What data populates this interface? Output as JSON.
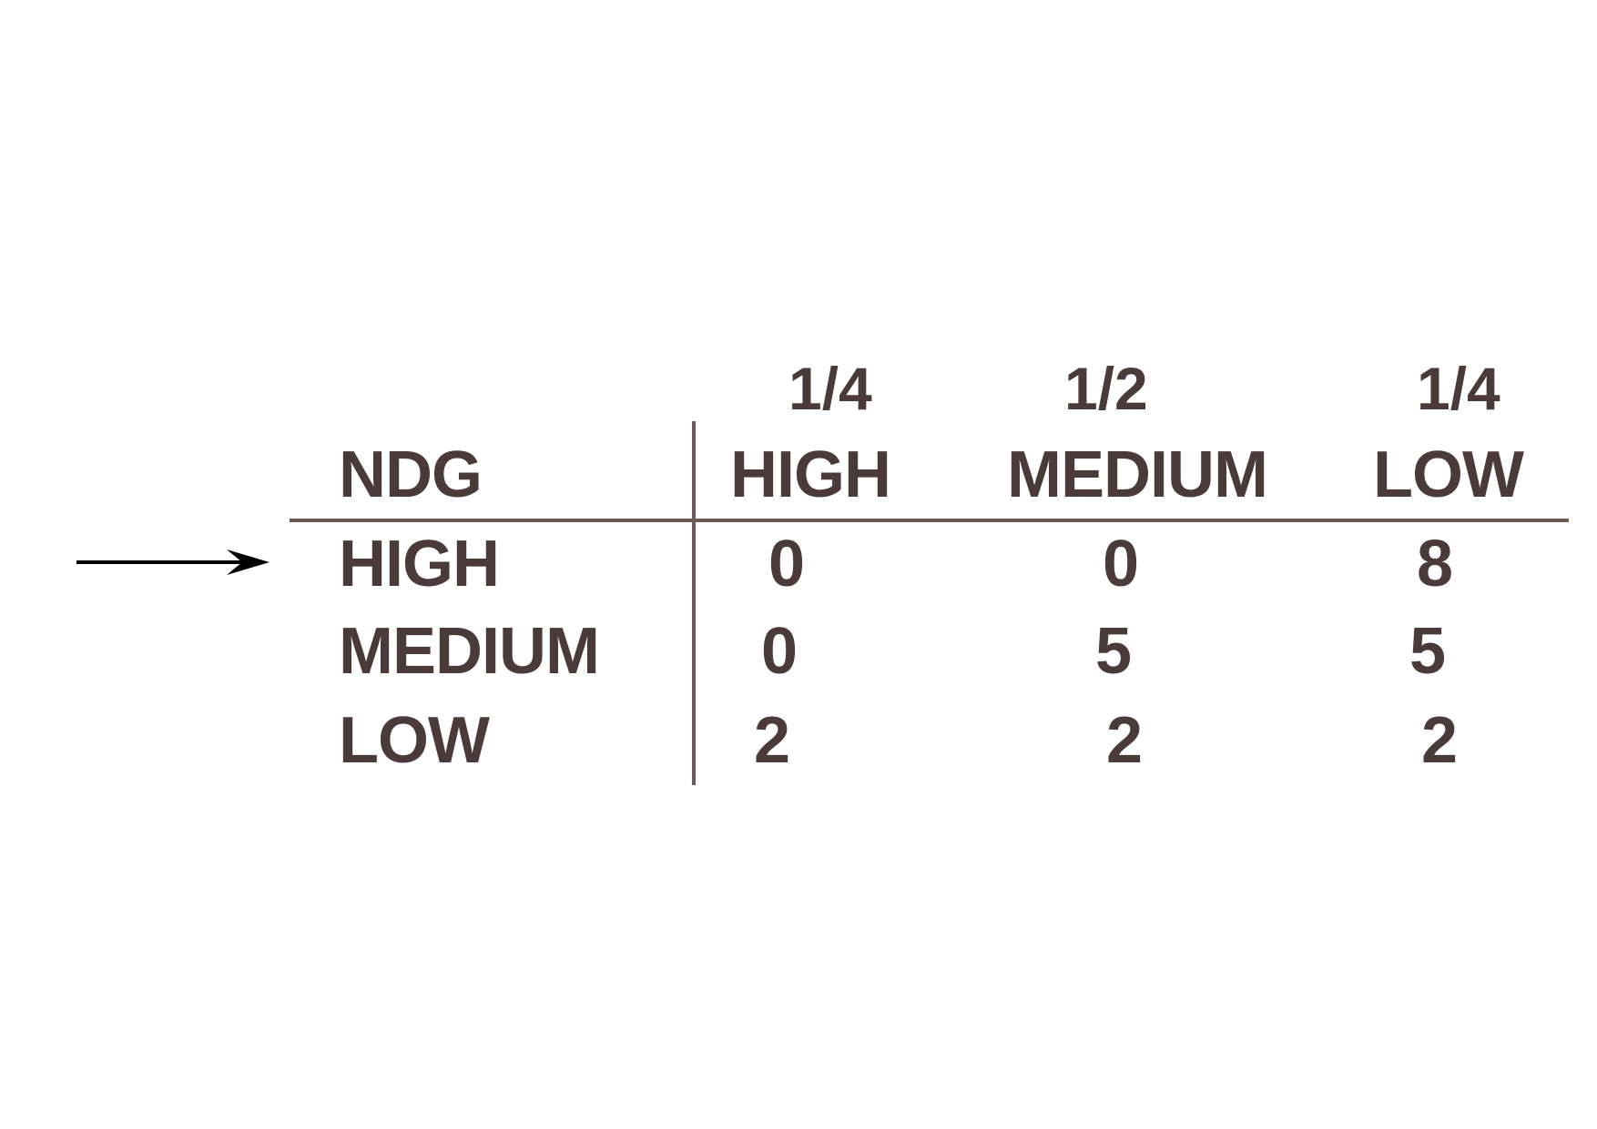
{
  "table": {
    "corner_label": "NDG",
    "column_fractions": [
      "1/4",
      "1/2",
      "1/4"
    ],
    "column_headers": [
      "HIGH",
      "MEDIUM",
      "LOW"
    ],
    "rows": [
      {
        "label": "HIGH",
        "values": [
          "0",
          "0",
          "8"
        ]
      },
      {
        "label": "MEDIUM",
        "values": [
          "0",
          "5",
          "5"
        ]
      },
      {
        "label": "LOW",
        "values": [
          "2",
          "2",
          "2"
        ]
      }
    ]
  },
  "arrow": {
    "icon": "right-arrow-icon",
    "points_to_row": "HIGH",
    "color": "#000000"
  },
  "colors": {
    "text": "#4a3a39",
    "rules": "#6b5a57"
  }
}
